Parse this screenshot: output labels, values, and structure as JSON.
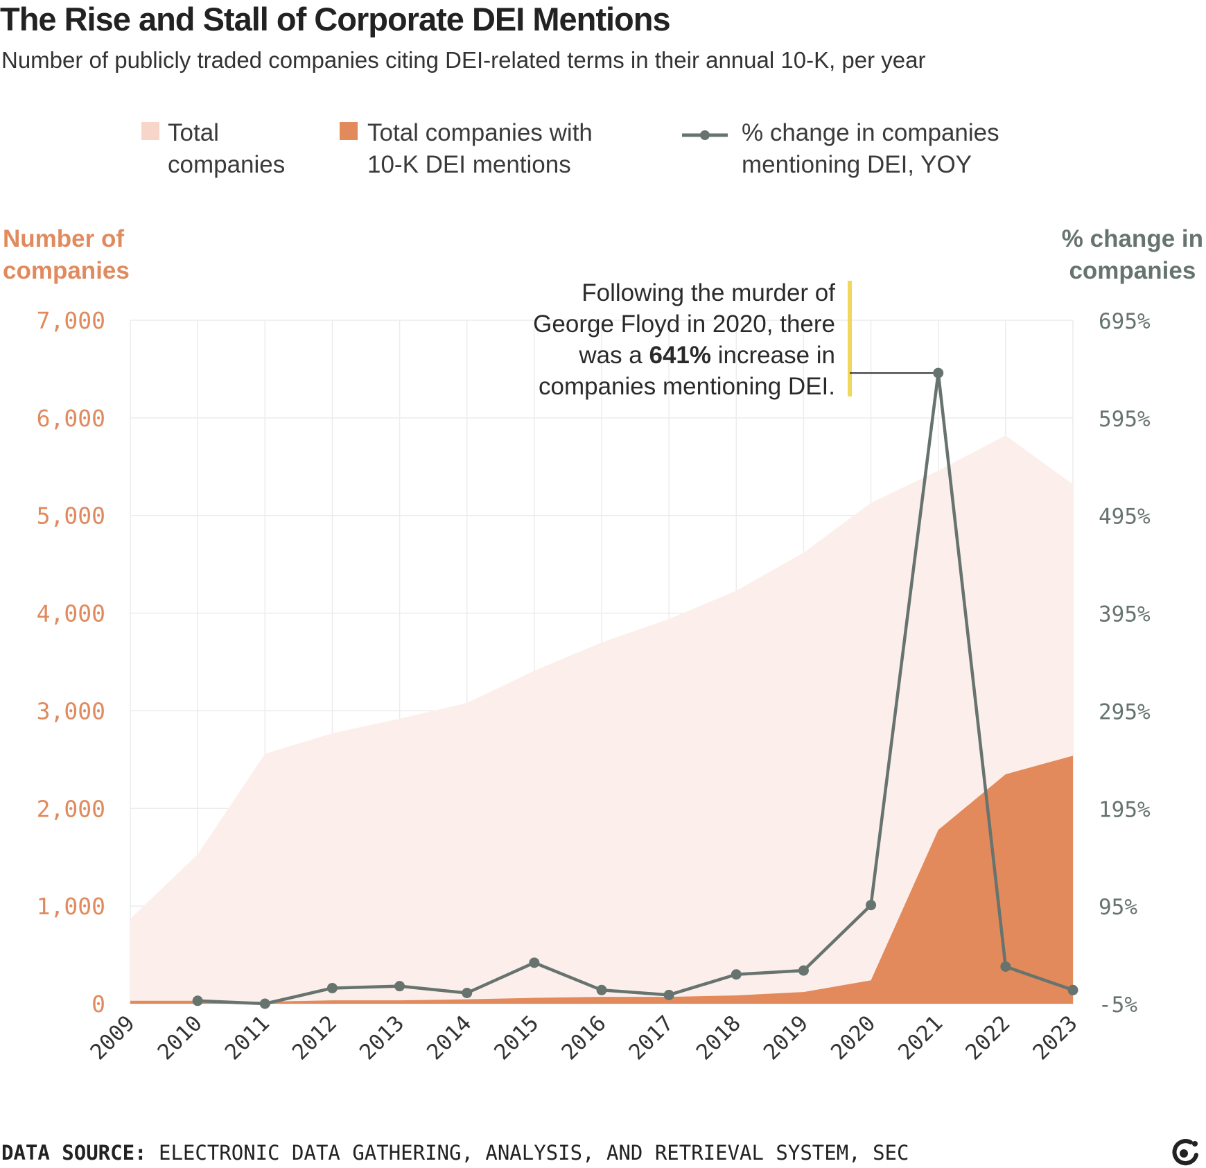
{
  "header": {
    "title": "The Rise and Stall of Corporate DEI Mentions",
    "subtitle": "Number of publicly traded companies citing DEI-related terms in their annual 10-K, per year"
  },
  "legend": {
    "items": [
      {
        "line1": "Total",
        "line2": "companies",
        "color": "#f7d6c9"
      },
      {
        "line1": "Total companies with",
        "line2": "10-K DEI mentions",
        "color": "#e28a5c"
      },
      {
        "line1": "% change in companies",
        "line2": "mentioning DEI, YOY",
        "color": "#66736f"
      }
    ]
  },
  "axes": {
    "left_title_1": "Number of",
    "left_title_2": "companies",
    "right_title_1": "% change in",
    "right_title_2": "companies"
  },
  "annotation": {
    "line1": "Following the murder of",
    "line2": "George Floyd in 2020, there",
    "line3_pre": "was a ",
    "line3_bold": "641%",
    "line3_post": " increase in",
    "line4": "companies mentioning DEI."
  },
  "footer": {
    "source_label": "DATA SOURCE:",
    "source_text": "ELECTRONIC DATA GATHERING, ANALYSIS, AND RETRIEVAL SYSTEM, SEC"
  },
  "chart_data": {
    "type": "area",
    "x": [
      "2009",
      "2010",
      "2011",
      "2012",
      "2013",
      "2014",
      "2015",
      "2016",
      "2017",
      "2018",
      "2019",
      "2020",
      "2021",
      "2022",
      "2023"
    ],
    "series": [
      {
        "name": "Total companies",
        "axis": "left",
        "type": "area",
        "color": "#fcefeb",
        "values": [
          870,
          1530,
          2560,
          2770,
          2920,
          3080,
          3410,
          3700,
          3940,
          4230,
          4620,
          5130,
          5460,
          5820,
          5320
        ]
      },
      {
        "name": "Total companies with 10-K DEI mentions",
        "axis": "left",
        "type": "area",
        "color": "#e28a5c",
        "values": [
          30,
          30,
          20,
          35,
          35,
          45,
          60,
          70,
          70,
          85,
          120,
          240,
          1780,
          2350,
          2540
        ]
      },
      {
        "name": "% change in companies mentioning DEI, YOY",
        "axis": "right",
        "type": "line",
        "color": "#66736f",
        "values": [
          null,
          -2,
          -5,
          11,
          13,
          6,
          37,
          9,
          4,
          25,
          29,
          96,
          641,
          33,
          9
        ]
      }
    ],
    "y_left": {
      "range": [
        0,
        7000
      ],
      "ticks": [
        "0",
        "1,000",
        "2,000",
        "3,000",
        "4,000",
        "5,000",
        "6,000",
        "7,000"
      ],
      "tick_values": [
        0,
        1000,
        2000,
        3000,
        4000,
        5000,
        6000,
        7000
      ],
      "color": "#e08a5e"
    },
    "y_right": {
      "range": [
        -5,
        695
      ],
      "ticks": [
        "-5%",
        "95%",
        "195%",
        "295%",
        "395%",
        "495%",
        "595%",
        "695%"
      ],
      "tick_values": [
        -5,
        95,
        195,
        295,
        395,
        495,
        595,
        695
      ],
      "color": "#66736f"
    },
    "grid": true,
    "legend_position": "top"
  }
}
